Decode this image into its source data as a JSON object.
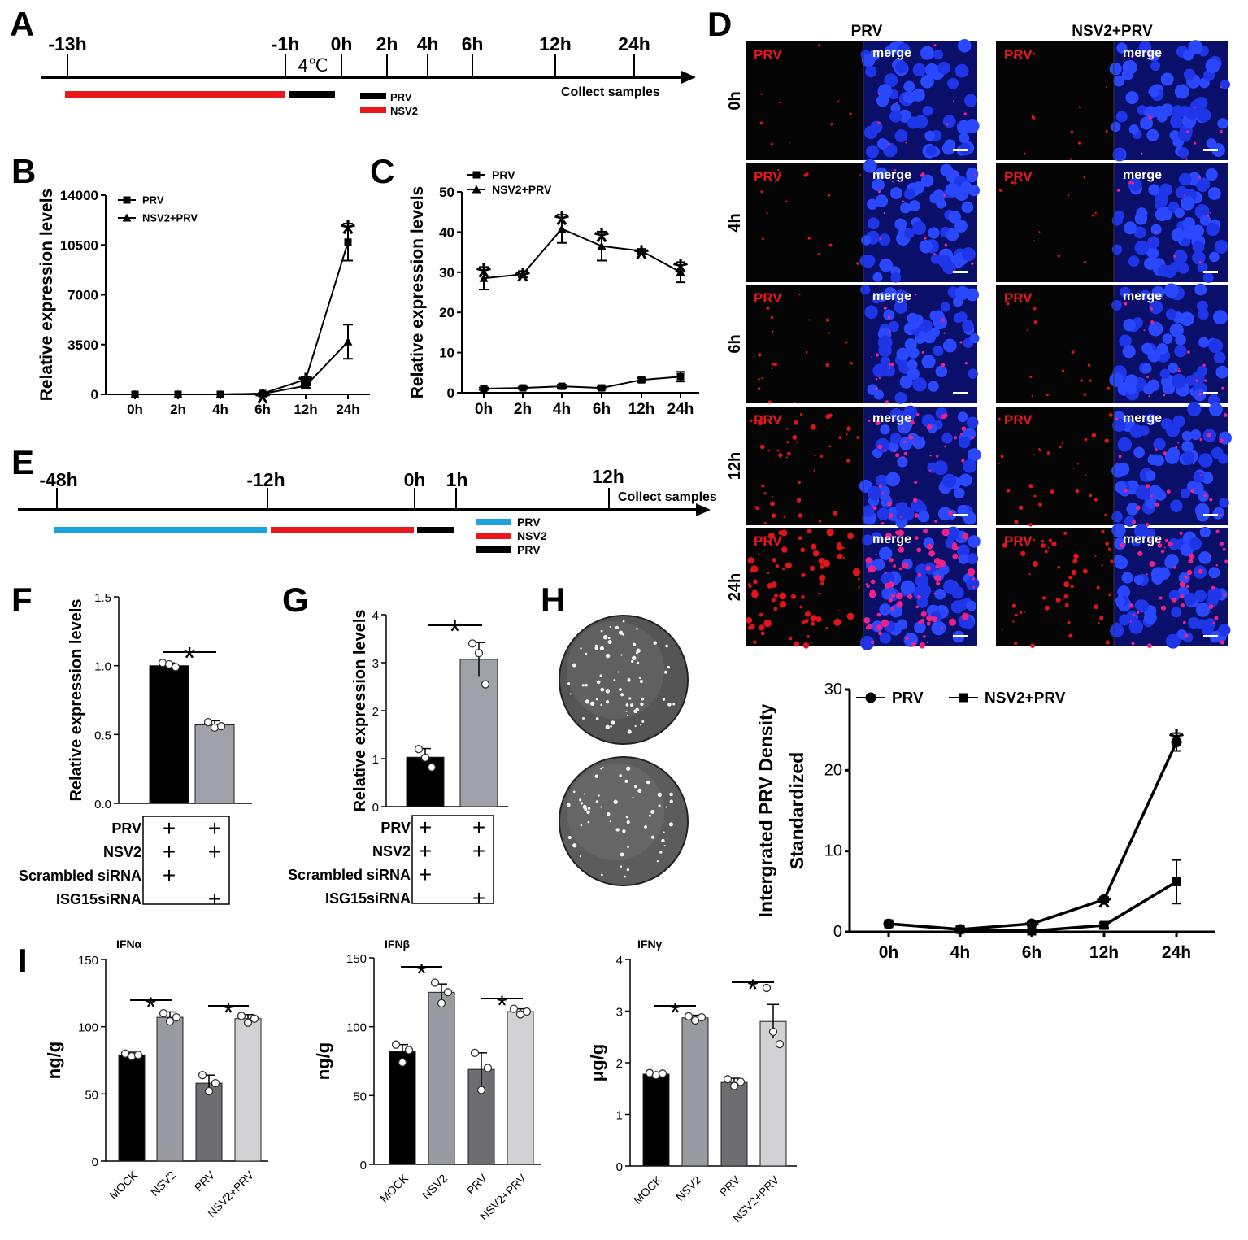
{
  "panel_letters": {
    "A": "A",
    "B": "B",
    "C": "C",
    "D": "D",
    "E": "E",
    "F": "F",
    "G": "G",
    "H": "H",
    "I": "I"
  },
  "timeline_a": {
    "labels": [
      "-13h",
      "-1h",
      "0h",
      "2h",
      "4h",
      "6h",
      "12h",
      "24h"
    ],
    "temp": "4℃",
    "end_label": "Collect samples",
    "legend": [
      {
        "name": "PRV",
        "color": "#000000"
      },
      {
        "name": "NSV2",
        "color": "#e8181c"
      }
    ]
  },
  "timeline_e": {
    "labels": [
      "-48h",
      "-12h",
      "0h",
      "1h",
      "12h"
    ],
    "end_label": "Collect samples",
    "legend": [
      {
        "name": "PRV",
        "color": "#1aa3dd"
      },
      {
        "name": "NSV2",
        "color": "#e8181c"
      },
      {
        "name": "PRV",
        "color": "#000000"
      }
    ]
  },
  "stars": {
    "s": "*"
  },
  "panel_d": {
    "col_headers": [
      "PRV",
      "NSV2+PRV"
    ],
    "row_labels": [
      "0h",
      "4h",
      "6h",
      "12h",
      "24h"
    ],
    "tag_red": "PRV",
    "tag_merge": "merge",
    "density": [
      0.02,
      0.05,
      0.12,
      0.3,
      0.6
    ],
    "density_nsv2": [
      0.03,
      0.03,
      0.06,
      0.18,
      0.35
    ]
  },
  "panel_h": {
    "plates": 2
  },
  "chart_data": [
    {
      "panel": "B",
      "type": "line",
      "ylabel": "Relative expression levels",
      "categories": [
        "0h",
        "2h",
        "4h",
        "6h",
        "12h",
        "24h"
      ],
      "yticks": [
        "0",
        "3500",
        "7000",
        "10500",
        "14000"
      ],
      "ylim": [
        0,
        14000
      ],
      "series": [
        {
          "name": "PRV",
          "marker": "square",
          "values": [
            0,
            0,
            0,
            60,
            1050,
            10700
          ],
          "err": [
            0,
            0,
            0,
            40,
            200,
            1300
          ]
        },
        {
          "name": "NSV2+PRV",
          "marker": "triangle",
          "values": [
            0,
            0,
            0,
            40,
            600,
            3700
          ],
          "err": [
            0,
            0,
            0,
            20,
            150,
            1200
          ]
        }
      ],
      "significance": [
        "6h",
        "12h",
        "24h"
      ]
    },
    {
      "panel": "C",
      "type": "line",
      "ylabel": "Relative expression levels",
      "categories": [
        "0h",
        "2h",
        "4h",
        "6h",
        "12h",
        "24h"
      ],
      "yticks": [
        "0",
        "10",
        "20",
        "30",
        "40",
        "50"
      ],
      "ylim": [
        0,
        50
      ],
      "series": [
        {
          "name": "PRV",
          "marker": "square",
          "values": [
            1,
            1.2,
            1.6,
            1.2,
            3.2,
            4
          ],
          "err": [
            0.3,
            0.3,
            0.4,
            0.3,
            0.5,
            1.2
          ]
        },
        {
          "name": "NSV2+PRV",
          "marker": "triangle",
          "values": [
            28.5,
            29.5,
            40.8,
            36.5,
            35.3,
            30
          ],
          "err": [
            2.8,
            0.8,
            3.5,
            3.6,
            0.5,
            2.5
          ]
        }
      ],
      "significance": [
        "0h",
        "2h",
        "4h",
        "6h",
        "12h",
        "24h"
      ]
    },
    {
      "panel": "D-quant",
      "type": "line",
      "ylabel": "Intergrated PRV Density",
      "ylabel2": "Standardized",
      "categories": [
        "0h",
        "4h",
        "6h",
        "12h",
        "24h"
      ],
      "yticks": [
        "0",
        "10",
        "20",
        "30"
      ],
      "ylim": [
        0,
        30
      ],
      "series": [
        {
          "name": "PRV",
          "marker": "circle",
          "values": [
            1,
            0.3,
            1,
            4,
            23.5
          ],
          "err": [
            0.2,
            0.1,
            0.2,
            0.3,
            1.1
          ]
        },
        {
          "name": "NSV2+PRV",
          "marker": "square",
          "values": [
            1,
            0.3,
            0.1,
            0.8,
            6.2
          ],
          "err": [
            0.2,
            0.1,
            0.1,
            0.3,
            2.7
          ]
        }
      ],
      "significance": [
        "6h",
        "12h",
        "24h"
      ]
    },
    {
      "panel": "F",
      "type": "bar",
      "ylabel": "Relative expression levels",
      "yticks": [
        "0.0",
        "0.5",
        "1.0",
        "1.5"
      ],
      "ylim": [
        0,
        1.5
      ],
      "values": [
        1.0,
        0.57
      ],
      "err": [
        0.02,
        0.03
      ],
      "points": [
        [
          1.02,
          1.01,
          0.99
        ],
        [
          0.59,
          0.55,
          0.56
        ]
      ],
      "colors": [
        "#000000",
        "#a0a0a8"
      ],
      "condition_rows": [
        "PRV",
        "NSV2",
        "Scrambled siRNA",
        "ISG15siRNA"
      ],
      "conditions": [
        [
          "+",
          "+",
          "+",
          ""
        ],
        [
          "+",
          "+",
          "",
          "+"
        ]
      ]
    },
    {
      "panel": "G",
      "type": "bar",
      "ylabel": "Relative expression levels",
      "yticks": [
        "0",
        "1",
        "2",
        "3",
        "4"
      ],
      "ylim": [
        0,
        4
      ],
      "values": [
        1.03,
        3.07
      ],
      "err": [
        0.18,
        0.35
      ],
      "points": [
        [
          1.2,
          1.02,
          0.82
        ],
        [
          3.4,
          3.2,
          2.55
        ]
      ],
      "colors": [
        "#000000",
        "#a0a0a8"
      ],
      "condition_rows": [
        "PRV",
        "NSV2",
        "Scrambled siRNA",
        "ISG15siRNA"
      ],
      "conditions": [
        [
          "+",
          "+",
          "+",
          ""
        ],
        [
          "+",
          "+",
          "",
          "+"
        ]
      ]
    },
    {
      "panel": "I-a",
      "type": "bar",
      "title": "IFNα",
      "ylabel": "ng/g",
      "categories": [
        "MOCK",
        "NSV2",
        "PRV",
        "NSV2+PRV"
      ],
      "yticks": [
        "0",
        "50",
        "100",
        "150"
      ],
      "ylim": [
        0,
        150
      ],
      "values": [
        79,
        107,
        58,
        106
      ],
      "err": [
        2,
        4,
        6,
        3
      ],
      "points": [
        [
          80,
          78,
          79
        ],
        [
          110,
          104,
          107
        ],
        [
          64,
          52,
          58
        ],
        [
          108,
          103,
          106
        ]
      ],
      "colors": [
        "#000000",
        "#9a9aa2",
        "#6e6e72",
        "#d2d2d4"
      ]
    },
    {
      "panel": "I-b",
      "type": "bar",
      "title": "IFNβ",
      "ylabel": "ng/g",
      "categories": [
        "MOCK",
        "NSV2",
        "PRV",
        "NSV2+PRV"
      ],
      "yticks": [
        "0",
        "50",
        "100",
        "150"
      ],
      "ylim": [
        0,
        150
      ],
      "values": [
        82,
        125,
        69,
        111
      ],
      "err": [
        5,
        6,
        12,
        2
      ],
      "points": [
        [
          87,
          74,
          83
        ],
        [
          132,
          117,
          125
        ],
        [
          81,
          54,
          70
        ],
        [
          113,
          109,
          111
        ]
      ],
      "colors": [
        "#000000",
        "#9a9aa2",
        "#6e6e72",
        "#d2d2d4"
      ]
    },
    {
      "panel": "I-c",
      "type": "bar",
      "title": "IFNγ",
      "ylabel": "μg/g",
      "categories": [
        "MOCK",
        "NSV2",
        "PRV",
        "NSV2+PRV"
      ],
      "yticks": [
        "0",
        "1",
        "2",
        "3",
        "4"
      ],
      "ylim": [
        0,
        4
      ],
      "values": [
        1.78,
        2.87,
        1.62,
        2.8
      ],
      "err": [
        0.03,
        0.05,
        0.08,
        0.33
      ],
      "points": [
        [
          1.8,
          1.76,
          1.79
        ],
        [
          2.9,
          2.82,
          2.88
        ],
        [
          1.68,
          1.55,
          1.63
        ],
        [
          3.45,
          2.6,
          2.36
        ]
      ],
      "colors": [
        "#000000",
        "#9a9aa2",
        "#6e6e72",
        "#d2d2d4"
      ]
    }
  ]
}
